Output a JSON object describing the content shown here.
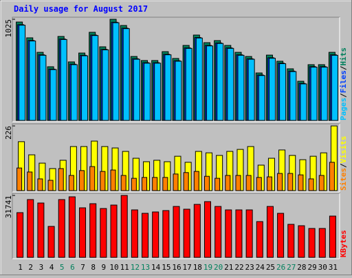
{
  "title": "Daily usage for August 2017",
  "chart_data": [
    {
      "type": "bar",
      "ylim": [
        0,
        1025
      ],
      "yticks": [
        1025
      ],
      "legend_separator": "/",
      "categories": [
        "1",
        "2",
        "3",
        "4",
        "5",
        "6",
        "7",
        "8",
        "9",
        "10",
        "11",
        "12",
        "13",
        "14",
        "15",
        "16",
        "17",
        "18",
        "19",
        "20",
        "21",
        "22",
        "23",
        "24",
        "25",
        "26",
        "27",
        "28",
        "29",
        "30",
        "31"
      ],
      "category_colors": [
        "#000000",
        "#000000",
        "#000000",
        "#000000",
        "#00805c",
        "#00805c",
        "#000000",
        "#000000",
        "#000000",
        "#000000",
        "#000000",
        "#00805c",
        "#00805c",
        "#000000",
        "#000000",
        "#000000",
        "#000000",
        "#000000",
        "#00805c",
        "#00805c",
        "#000000",
        "#000000",
        "#000000",
        "#000000",
        "#000000",
        "#00805c",
        "#00805c",
        "#000000",
        "#000000",
        "#000000",
        "#000000"
      ],
      "series": [
        {
          "name": "Pages",
          "color": "#00c0ff",
          "values": [
            965,
            805,
            660,
            515,
            820,
            565,
            655,
            860,
            715,
            990,
            930,
            620,
            580,
            580,
            665,
            600,
            730,
            835,
            755,
            780,
            730,
            660,
            620,
            455,
            630,
            575,
            495,
            370,
            540,
            540,
            660
          ]
        },
        {
          "name": "Files",
          "color": "#0040ff",
          "values": [
            970,
            810,
            665,
            520,
            825,
            570,
            660,
            865,
            720,
            995,
            935,
            625,
            585,
            585,
            670,
            605,
            735,
            840,
            760,
            785,
            735,
            665,
            625,
            460,
            635,
            580,
            500,
            375,
            545,
            545,
            665
          ]
        },
        {
          "name": "Hits",
          "color": "#00805c",
          "values": [
            997,
            837,
            690,
            544,
            851,
            593,
            683,
            893,
            746,
            1025,
            962,
            648,
            607,
            607,
            697,
            628,
            760,
            865,
            788,
            809,
            760,
            690,
            648,
            481,
            662,
            600,
            523,
            397,
            565,
            565,
            690
          ]
        }
      ]
    },
    {
      "type": "bar",
      "ylim": [
        0,
        226
      ],
      "yticks": [
        226
      ],
      "legend_separator": "/",
      "series": [
        {
          "name": "Sites",
          "color": "#ff8000",
          "values": [
            79,
            65,
            41,
            36,
            77,
            53,
            70,
            84,
            67,
            72,
            53,
            43,
            46,
            46,
            46,
            58,
            63,
            67,
            50,
            43,
            53,
            53,
            53,
            46,
            48,
            60,
            60,
            55,
            41,
            53,
            99
          ]
        },
        {
          "name": "Visits",
          "color": "#ffff00",
          "values": [
            171,
            125,
            96,
            77,
            106,
            154,
            154,
            173,
            154,
            149,
            137,
            113,
            101,
            106,
            101,
            120,
            99,
            137,
            132,
            123,
            137,
            144,
            154,
            89,
            113,
            142,
            123,
            108,
            120,
            132,
            226
          ]
        }
      ]
    },
    {
      "type": "bar",
      "ylim": [
        0,
        31741
      ],
      "yticks": [
        31741
      ],
      "series": [
        {
          "name": "KBytes",
          "color": "#ff0000",
          "values": [
            22924,
            29625,
            27862,
            15871,
            29625,
            31035,
            25393,
            27509,
            25040,
            26804,
            31741,
            24335,
            22571,
            23277,
            23982,
            26098,
            24688,
            27156,
            28567,
            26098,
            24335,
            24335,
            24335,
            18339,
            26098,
            22571,
            16929,
            16223,
            14812,
            14812,
            21161
          ]
        }
      ]
    }
  ]
}
